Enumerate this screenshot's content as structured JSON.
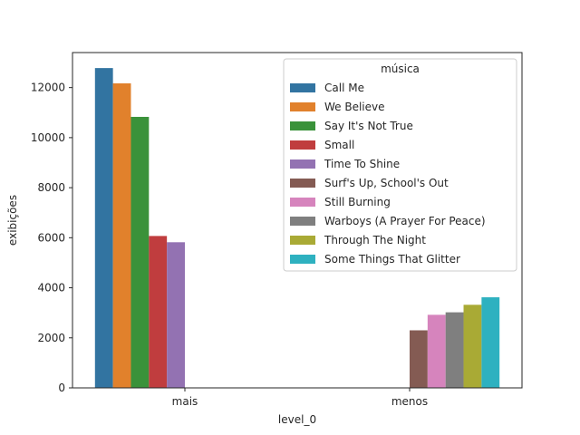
{
  "chart_data": {
    "type": "bar",
    "title": "",
    "xlabel": "level_0",
    "ylabel": "exibições",
    "categories": [
      "mais",
      "menos"
    ],
    "ylim": [
      0,
      13400
    ],
    "yticks": [
      0,
      2000,
      4000,
      6000,
      8000,
      10000,
      12000
    ],
    "grid": false,
    "legend": {
      "title": "música",
      "placement": "top-right"
    },
    "series": [
      {
        "name": "Call Me",
        "color": "#3274a1",
        "values": [
          12780,
          null
        ]
      },
      {
        "name": "We Believe",
        "color": "#e1812c",
        "values": [
          12170,
          null
        ]
      },
      {
        "name": "Say It's Not True",
        "color": "#3a923a",
        "values": [
          10830,
          null
        ]
      },
      {
        "name": "Small",
        "color": "#c03d3e",
        "values": [
          6070,
          null
        ]
      },
      {
        "name": "Time To Shine",
        "color": "#9372b2",
        "values": [
          5820,
          null
        ]
      },
      {
        "name": "Surf's Up, School's Out",
        "color": "#845b53",
        "values": [
          null,
          2300
        ]
      },
      {
        "name": "Still Burning",
        "color": "#d684bd",
        "values": [
          null,
          2920
        ]
      },
      {
        "name": "Warboys (A Prayer For Peace)",
        "color": "#7f7f7f",
        "values": [
          null,
          3020
        ]
      },
      {
        "name": "Through The Night",
        "color": "#a9aa35",
        "values": [
          null,
          3320
        ]
      },
      {
        "name": "Some Things That Glitter",
        "color": "#2eb1c0",
        "values": [
          null,
          3620
        ]
      }
    ]
  }
}
